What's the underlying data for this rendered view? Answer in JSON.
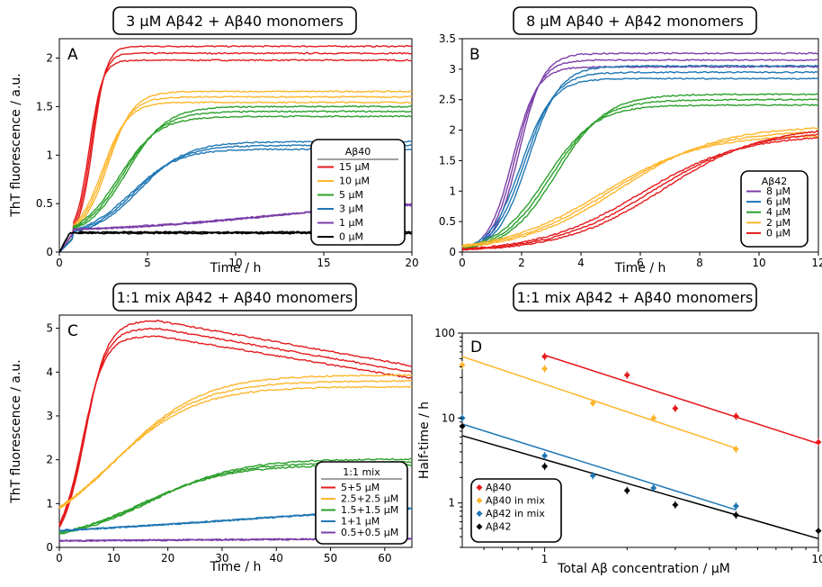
{
  "chart_data": [
    {
      "panel": "A",
      "type": "line",
      "title": "3 µM Aβ42 + Aβ40 monomers",
      "xlabel": "Time / h",
      "ylabel": "ThT fluorescence / a.u.",
      "xlim": [
        0,
        20
      ],
      "ylim": [
        0,
        2.2
      ],
      "xticks": [
        "0",
        "5",
        "10",
        "15",
        "20"
      ],
      "yticks": [
        "0",
        "0.5",
        "1",
        "1.5",
        "2"
      ],
      "xtick_values": [
        0,
        5,
        10,
        15,
        20
      ],
      "ytick_values": [
        0,
        0.5,
        1,
        1.5,
        2
      ],
      "legend_title": "Aβ40",
      "legend_position": "lower-right",
      "series": [
        {
          "name": "15 µM",
          "color": "#e41a1c",
          "plateau": 2.05,
          "t_half": 1.8,
          "rate": 1.2,
          "start": 0.15,
          "tlag": 0.8
        },
        {
          "name": "10 µM",
          "color": "#fdb62d",
          "plateau": 1.6,
          "t_half": 2.6,
          "rate": 0.9,
          "start": 0.15,
          "tlag": 0.8
        },
        {
          "name": "5 µM",
          "color": "#2ca02c",
          "plateau": 1.45,
          "t_half": 3.6,
          "rate": 0.8,
          "start": 0.15,
          "tlag": 0.8
        },
        {
          "name": "3 µM",
          "color": "#1f77b4",
          "plateau": 1.1,
          "t_half": 4.3,
          "rate": 0.8,
          "start": 0.15,
          "tlag": 0.8
        },
        {
          "name": "1 µM",
          "color": "#7b3fa8",
          "plateau": 0.55,
          "t_half": 12.0,
          "rate": 0.6,
          "start": 0.2,
          "tlag": 0.8
        },
        {
          "name": "0 µM",
          "color": "#000000",
          "plateau": 0.2,
          "t_half": 1.0,
          "rate": 2.5,
          "start": 0.2,
          "tlag": 0.6
        }
      ]
    },
    {
      "panel": "B",
      "type": "line",
      "title": "8 µM Aβ40 + Aβ42 monomers",
      "xlabel": "Time / h",
      "ylabel": "",
      "xlim": [
        0,
        12
      ],
      "ylim": [
        0,
        3.5
      ],
      "xticks": [
        "0",
        "2",
        "4",
        "6",
        "8",
        "10",
        "12"
      ],
      "yticks": [
        "0",
        "0.5",
        "1",
        "1.5",
        "2",
        "2.5",
        "3",
        "3.5"
      ],
      "xtick_values": [
        0,
        2,
        4,
        6,
        8,
        10,
        12
      ],
      "ytick_values": [
        0,
        0.5,
        1,
        1.5,
        2,
        2.5,
        3,
        3.5
      ],
      "legend_title": "Aβ42",
      "legend_position": "lower-right",
      "series": [
        {
          "name": "8 µM",
          "color": "#7b3fa8",
          "plateau": 3.15,
          "t_half": 1.8,
          "rate": 1.1,
          "start": 0,
          "tlag": 0
        },
        {
          "name": "6 µM",
          "color": "#1f77b4",
          "plateau": 2.95,
          "t_half": 2.1,
          "rate": 1.0,
          "start": 0,
          "tlag": 0
        },
        {
          "name": "4 µM",
          "color": "#2ca02c",
          "plateau": 2.5,
          "t_half": 3.0,
          "rate": 0.9,
          "start": 0,
          "tlag": 0
        },
        {
          "name": "2 µM",
          "color": "#fdb62d",
          "plateau": 2.0,
          "t_half": 5.0,
          "rate": 0.75,
          "start": 0,
          "tlag": 0
        },
        {
          "name": "0 µM",
          "color": "#e41a1c",
          "plateau": 2.0,
          "t_half": 6.4,
          "rate": 0.95,
          "start": 0,
          "tlag": 0
        }
      ]
    },
    {
      "panel": "C",
      "type": "line",
      "title": "1:1 mix Aβ42 + Aβ40 monomers",
      "xlabel": "Time / h",
      "ylabel": "ThT fluorescence / a.u.",
      "xlim": [
        0,
        65
      ],
      "ylim": [
        0,
        5.3
      ],
      "xticks": [
        "0",
        "10",
        "20",
        "30",
        "40",
        "50",
        "60"
      ],
      "yticks": [
        "0",
        "1",
        "2",
        "3",
        "4",
        "5"
      ],
      "xtick_values": [
        0,
        10,
        20,
        30,
        40,
        50,
        60
      ],
      "ytick_values": [
        0,
        1,
        2,
        3,
        4,
        5
      ],
      "legend_title": "1:1 mix",
      "legend_position": "lower-right",
      "series": [
        {
          "name": "5+5 µM",
          "color": "#e41a1c",
          "plateau": 5.0,
          "t_half": 4.5,
          "rate": 0.55,
          "start": 0,
          "tlag": 0,
          "decay_from": 18,
          "decay_to": 4.0
        },
        {
          "name": "2.5+2.5 µM",
          "color": "#fdb62d",
          "plateau": 3.8,
          "t_half": 10.0,
          "rate": 0.32,
          "start": 0.1,
          "tlag": 0
        },
        {
          "name": "1.5+1.5 µM",
          "color": "#2ca02c",
          "plateau": 1.95,
          "t_half": 16.0,
          "rate": 0.5,
          "start": 0.1,
          "tlag": 0
        },
        {
          "name": "1+1 µM",
          "color": "#1f77b4",
          "plateau": 1.25,
          "t_half": 38.0,
          "rate": 0.28,
          "start": 0.1,
          "tlag": 0
        },
        {
          "name": "0.5+0.5 µM",
          "color": "#7b3fa8",
          "plateau": 0.3,
          "t_half": 30.0,
          "rate": 0.1,
          "start": 0.05,
          "tlag": 0
        }
      ]
    },
    {
      "panel": "D",
      "type": "scatter",
      "title": "1:1 mix Aβ42 + Aβ40 monomers",
      "xlabel": "Total Aβ concentration / µM",
      "ylabel": "Half-time / h",
      "xscale": "log",
      "yscale": "log",
      "xlim": [
        0.5,
        10
      ],
      "ylim": [
        0.3,
        100
      ],
      "xticks": [
        "1",
        "10"
      ],
      "yticks": [
        "1",
        "10",
        "100"
      ],
      "xtick_values": [
        1,
        10
      ],
      "ytick_values": [
        1,
        10,
        100
      ],
      "legend_position": "lower-left",
      "series": [
        {
          "name": "Aβ40",
          "color": "#e41a1c",
          "x": [
            1,
            2,
            3,
            5,
            10
          ],
          "y": [
            53,
            32,
            13,
            10.5,
            5.2
          ],
          "fit": [
            [
              1,
              55
            ],
            [
              10,
              5
            ]
          ]
        },
        {
          "name": "Aβ40 in mix",
          "color": "#fdb62d",
          "x": [
            0.5,
            1,
            1.5,
            2.5,
            5
          ],
          "y": [
            42,
            38,
            15,
            10,
            4.3
          ],
          "fit": [
            [
              0.5,
              53
            ],
            [
              5,
              4.4
            ]
          ]
        },
        {
          "name": "Aβ42 in mix",
          "color": "#1f77b4",
          "x": [
            0.5,
            1,
            1.5,
            2.5,
            5
          ],
          "y": [
            10,
            3.6,
            2.1,
            1.5,
            0.92
          ],
          "fit": [
            [
              0.5,
              8.5
            ],
            [
              5,
              0.83
            ]
          ]
        },
        {
          "name": "Aβ42",
          "color": "#000000",
          "x": [
            0.5,
            1,
            2,
            3,
            5,
            10
          ],
          "y": [
            8,
            2.7,
            1.4,
            0.95,
            0.72,
            0.47
          ],
          "fit": [
            [
              0.5,
              6.2
            ],
            [
              10,
              0.38
            ]
          ]
        }
      ]
    }
  ]
}
